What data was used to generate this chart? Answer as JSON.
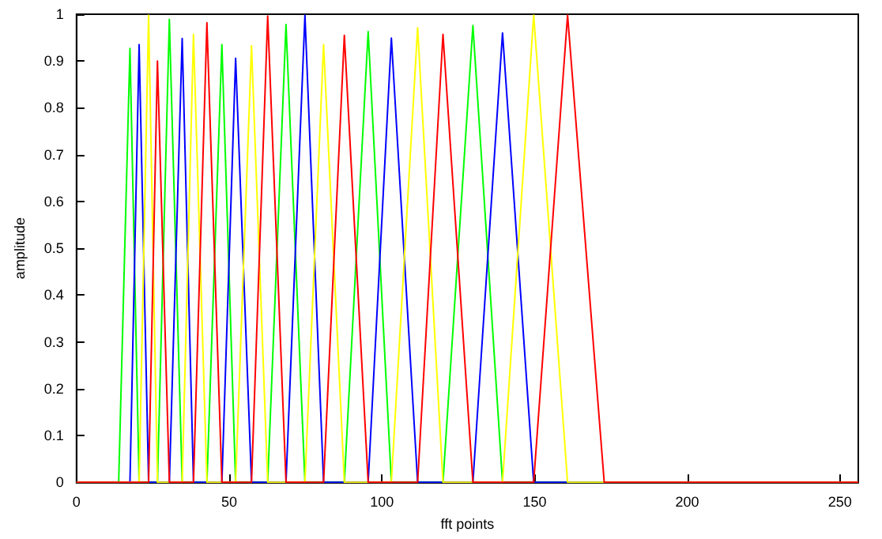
{
  "chart_data": {
    "type": "line",
    "xlabel": "fft points",
    "ylabel": "amplitude",
    "xlim": [
      0,
      256
    ],
    "xticks": [
      0,
      50,
      100,
      150,
      200,
      250
    ],
    "ylim": [
      0,
      1
    ],
    "yticks": [
      0,
      0.1,
      0.2,
      0.3,
      0.4,
      0.5,
      0.6,
      0.7,
      0.8,
      0.9,
      1
    ],
    "grid": false,
    "marker": "none",
    "line_style": "solid",
    "series": [
      {
        "color": "#00ff00",
        "x": [
          0,
          13.8,
          17.5,
          20.5,
          26.5,
          30.4,
          34.6,
          42.7,
          47.6,
          52.1,
          62.6,
          68.6,
          74.8,
          87.7,
          95.5,
          103.1,
          120,
          129.8,
          139.5,
          256
        ],
        "values": [
          0,
          0,
          0.927,
          0,
          0,
          0.989,
          0,
          0,
          0.935,
          0,
          0,
          0.978,
          0,
          0,
          0.963,
          0,
          0,
          0.976,
          0,
          0
        ]
      },
      {
        "color": "#0000ff",
        "x": [
          0,
          17.5,
          20.5,
          23.6,
          30.4,
          34.6,
          38.3,
          47.6,
          52.1,
          57.3,
          68.6,
          74.8,
          80.9,
          95.5,
          103.1,
          111.7,
          129.8,
          139.5,
          149.7,
          256
        ],
        "values": [
          0,
          0,
          0.935,
          0,
          0,
          0.948,
          0,
          0,
          0.906,
          0,
          0,
          0.998,
          0,
          0,
          0.949,
          0,
          0,
          0.96,
          0,
          0
        ]
      },
      {
        "color": "#ffff00",
        "x": [
          0,
          20.5,
          23.6,
          26.5,
          34.6,
          38.3,
          42.7,
          52.1,
          57.3,
          62.6,
          74.8,
          80.9,
          87.7,
          103.1,
          111.7,
          120,
          139.5,
          149.7,
          160.8,
          256
        ],
        "values": [
          0,
          0,
          0.998,
          0,
          0,
          0.957,
          0,
          0,
          0.933,
          0,
          0,
          0.935,
          0,
          0,
          0.971,
          0,
          0,
          0.998,
          0,
          0
        ]
      },
      {
        "color": "#ff0000",
        "x": [
          0,
          23.6,
          26.5,
          30.4,
          38.3,
          42.7,
          47.6,
          57.3,
          62.6,
          68.6,
          80.9,
          87.7,
          95.5,
          111.7,
          120,
          129.8,
          149.7,
          160.8,
          172.8,
          256
        ],
        "values": [
          0,
          0,
          0.9,
          0,
          0,
          0.982,
          0,
          0,
          0.996,
          0,
          0,
          0.955,
          0,
          0,
          0.957,
          0,
          0,
          0.998,
          0,
          0
        ]
      }
    ]
  }
}
